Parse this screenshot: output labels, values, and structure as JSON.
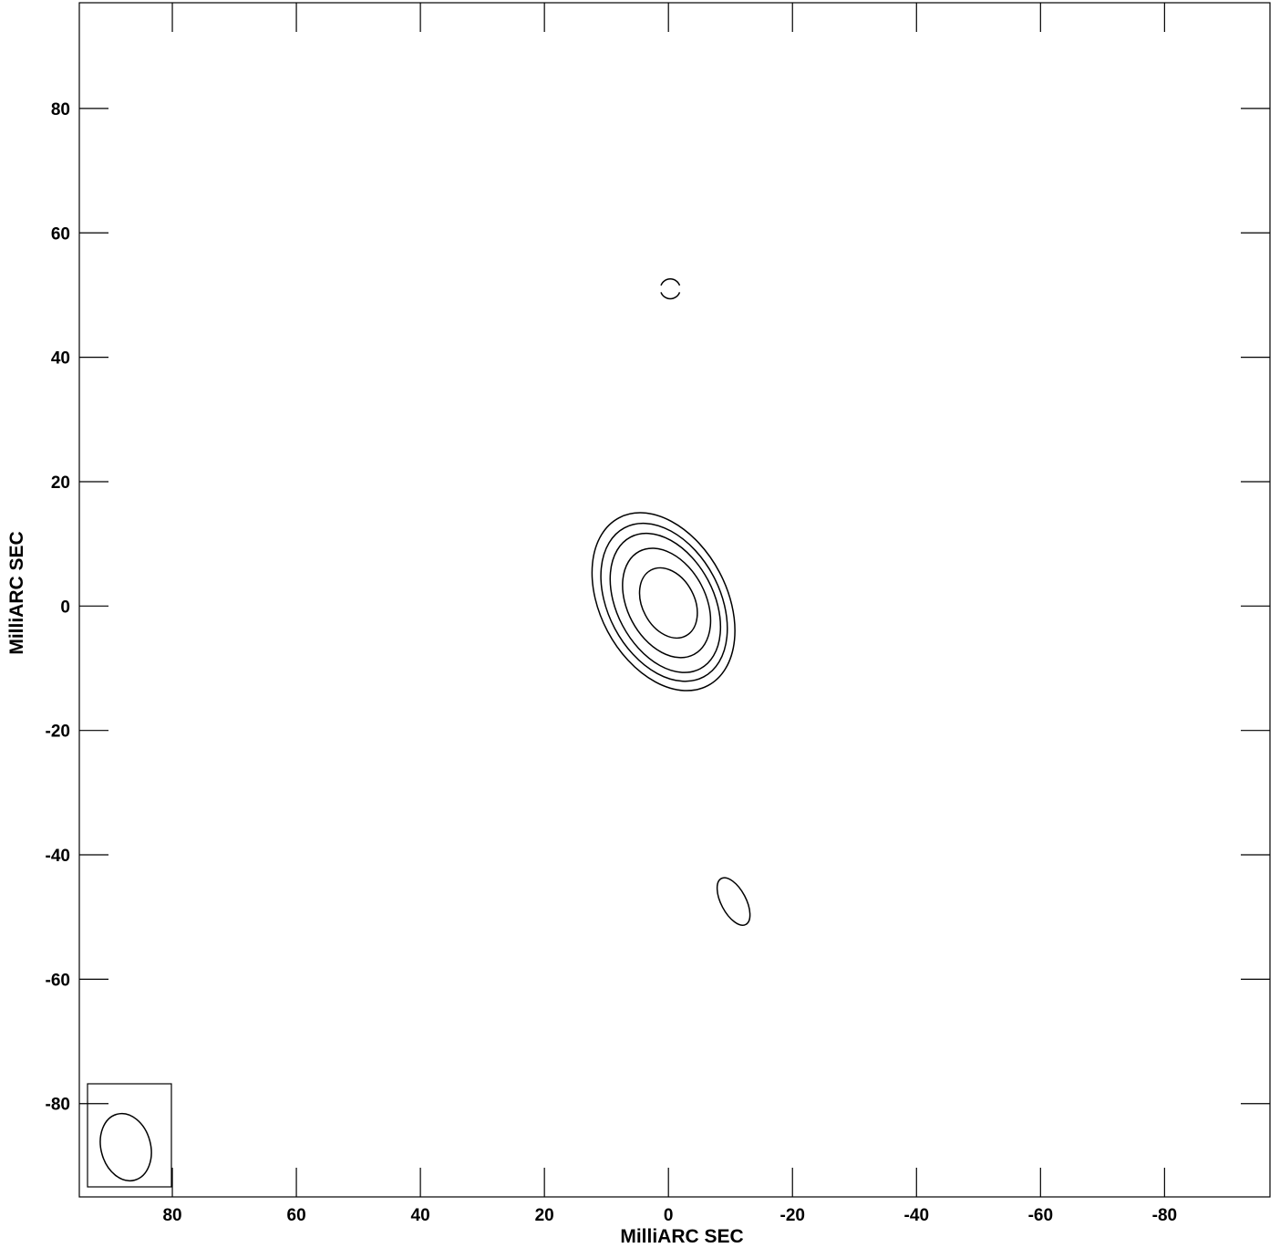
{
  "chart_data": {
    "type": "contour",
    "xlabel": "MilliARC SEC",
    "ylabel": "MilliARC SEC",
    "xlim": [
      95,
      -97
    ],
    "ylim": [
      -95,
      97
    ],
    "x_ticks": [
      80,
      60,
      40,
      20,
      0,
      -20,
      -40,
      -60,
      -80
    ],
    "y_ticks": [
      80,
      60,
      40,
      20,
      0,
      -20,
      -40,
      -60,
      -80
    ],
    "grid": false,
    "contours": [
      {
        "cx": 0,
        "cy": 0.5,
        "a": 4.2,
        "b": 6.0,
        "angle": 28
      },
      {
        "cx": 0.3,
        "cy": 0.5,
        "a": 6.3,
        "b": 9.4,
        "angle": 28
      },
      {
        "cx": 0.5,
        "cy": 0.5,
        "a": 7.8,
        "b": 12.0,
        "angle": 28
      },
      {
        "cx": 0.7,
        "cy": 0.6,
        "a": 9.0,
        "b": 13.6,
        "angle": 28
      },
      {
        "cx": 0.8,
        "cy": 0.7,
        "a": 10.2,
        "b": 15.3,
        "angle": 28
      },
      {
        "cx": -10.5,
        "cy": -47.5,
        "a": 2.0,
        "b": 4.2,
        "angle": 28
      }
    ],
    "arcs": [
      {
        "cx": -0.3,
        "cy": 51.0,
        "r": 1.6
      }
    ],
    "beam": {
      "cx": 87.5,
      "cy": -87,
      "a": 4.0,
      "b": 5.5,
      "angle": 15
    }
  }
}
